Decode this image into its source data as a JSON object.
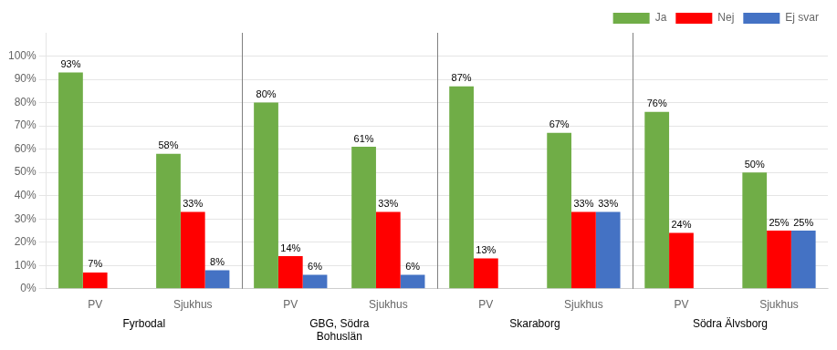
{
  "chart_data": {
    "type": "bar",
    "categories": [
      "PV",
      "Sjukhus",
      "PV",
      "Sjukhus",
      "PV",
      "Sjukhus",
      "PV",
      "Sjukhus"
    ],
    "groups": [
      "Fyrbodal",
      "GBG, Södra\nBohuslän",
      "Skaraborg",
      "Södra Älvsborg"
    ],
    "series": [
      {
        "name": "Ja",
        "color": "#70AD47",
        "values": [
          93,
          58,
          80,
          61,
          87,
          67,
          76,
          50
        ],
        "value_labels": [
          "93%",
          "58%",
          "80%",
          "61%",
          "87%",
          "67%",
          "76%",
          "50%"
        ]
      },
      {
        "name": "Nej",
        "color": "#FF0000",
        "values": [
          7,
          33,
          14,
          33,
          13,
          33,
          24,
          25
        ],
        "value_labels": [
          "7%",
          "33%",
          "14%",
          "33%",
          "13%",
          "33%",
          "24%",
          "25%"
        ]
      },
      {
        "name": "Ej svar",
        "color": "#4472C4",
        "values": [
          0,
          8,
          6,
          6,
          0,
          33,
          0,
          25
        ],
        "value_labels": [
          null,
          "8%",
          "6%",
          "6%",
          null,
          "33%",
          null,
          "25%"
        ]
      }
    ],
    "ylim": [
      0,
      110
    ],
    "yticks": [
      {
        "value": 0,
        "label": "0%"
      },
      {
        "value": 10,
        "label": "10%"
      },
      {
        "value": 20,
        "label": "20%"
      },
      {
        "value": 30,
        "label": "30%"
      },
      {
        "value": 40,
        "label": "40%"
      },
      {
        "value": 50,
        "label": "50%"
      },
      {
        "value": 60,
        "label": "60%"
      },
      {
        "value": 70,
        "label": "70%"
      },
      {
        "value": 80,
        "label": "80%"
      },
      {
        "value": 90,
        "label": "90%"
      },
      {
        "value": 100,
        "label": "100%"
      }
    ],
    "grid": true,
    "legend": "upper right",
    "data_labels": true
  }
}
